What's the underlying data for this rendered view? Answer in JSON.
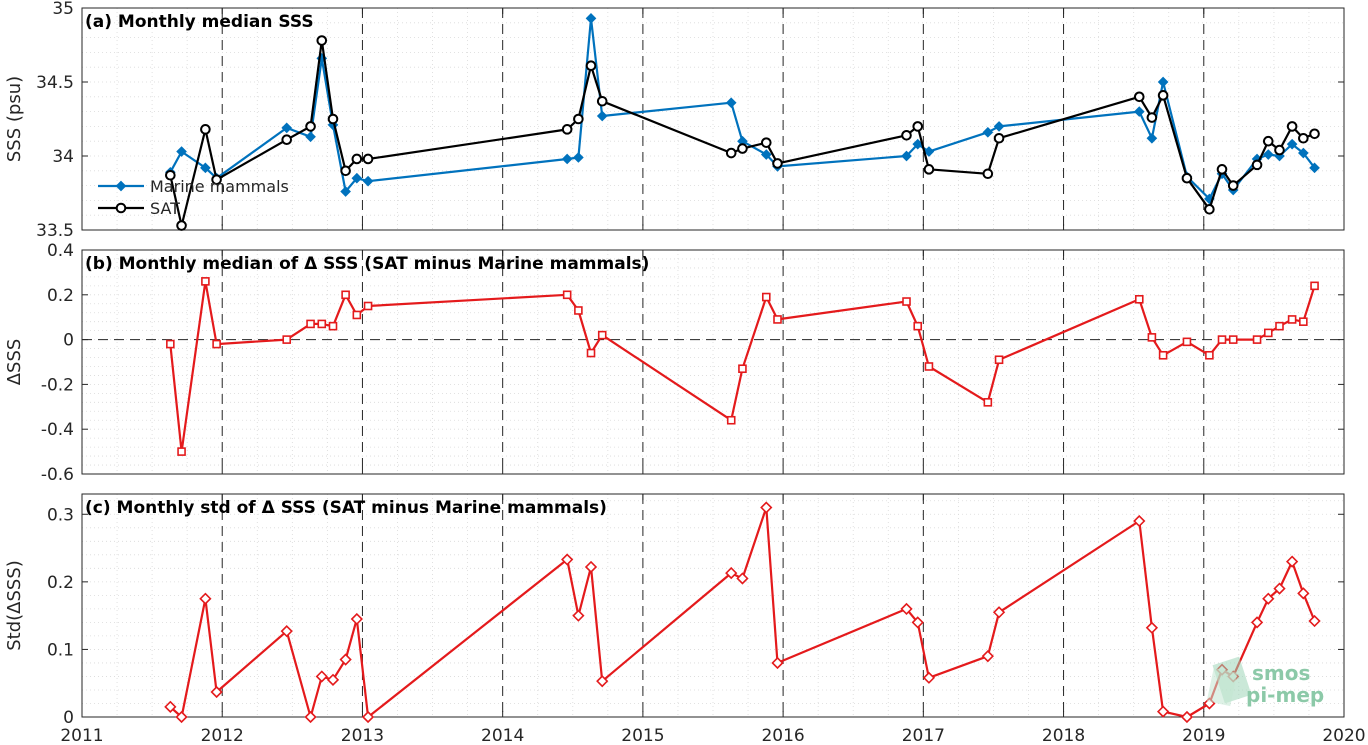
{
  "chart_data": [
    {
      "type": "line",
      "title": "(a) Monthly median SSS",
      "ylabel": "SSS (psu)",
      "xlim": [
        2011,
        2020
      ],
      "ylim": [
        33.5,
        35
      ],
      "yticks": [
        33.5,
        34,
        34.5,
        35
      ],
      "ytick_labels": [
        "33.5",
        "34",
        "34.5",
        "35"
      ],
      "grid": "minor dotted",
      "legend": "left",
      "series": [
        {
          "name": "Marine mammals",
          "color": "#0072BD",
          "marker": "diamond",
          "x": [
            2011.63,
            2011.71,
            2011.88,
            2011.96,
            2012.46,
            2012.63,
            2012.71,
            2012.79,
            2012.88,
            2012.96,
            2013.04,
            2014.46,
            2014.54,
            2014.63,
            2014.71,
            2015.63,
            2015.71,
            2015.88,
            2015.96,
            2016.88,
            2016.96,
            2017.04,
            2017.46,
            2017.54,
            2018.54,
            2018.63,
            2018.71,
            2018.88,
            2019.04,
            2019.13,
            2019.21,
            2019.38,
            2019.46,
            2019.54,
            2019.63,
            2019.71,
            2019.79
          ],
          "y": [
            33.89,
            34.03,
            33.92,
            33.85,
            34.19,
            34.13,
            34.66,
            34.21,
            33.76,
            33.85,
            33.83,
            33.98,
            33.99,
            34.93,
            34.27,
            34.36,
            34.1,
            34.01,
            33.93,
            34.0,
            34.08,
            34.03,
            34.16,
            34.2,
            34.3,
            34.12,
            34.5,
            33.86,
            33.71,
            33.88,
            33.77,
            33.98,
            34.01,
            34.0,
            34.08,
            34.02,
            33.92
          ]
        },
        {
          "name": "SAT",
          "color": "#000000",
          "marker": "circle",
          "x": [
            2011.63,
            2011.71,
            2011.88,
            2011.96,
            2012.46,
            2012.63,
            2012.71,
            2012.79,
            2012.88,
            2012.96,
            2013.04,
            2014.46,
            2014.54,
            2014.63,
            2014.71,
            2015.63,
            2015.71,
            2015.88,
            2015.96,
            2016.88,
            2016.96,
            2017.04,
            2017.46,
            2017.54,
            2018.54,
            2018.63,
            2018.71,
            2018.88,
            2019.04,
            2019.13,
            2019.21,
            2019.38,
            2019.46,
            2019.54,
            2019.63,
            2019.71,
            2019.79
          ],
          "y": [
            33.87,
            33.53,
            34.18,
            33.84,
            34.11,
            34.2,
            34.78,
            34.25,
            33.9,
            33.98,
            33.98,
            34.18,
            34.25,
            34.61,
            34.37,
            34.02,
            34.05,
            34.09,
            33.95,
            34.14,
            34.2,
            33.91,
            33.88,
            34.12,
            34.4,
            34.26,
            34.41,
            33.85,
            33.64,
            33.91,
            33.8,
            33.94,
            34.1,
            34.04,
            34.2,
            34.12,
            34.15
          ]
        }
      ]
    },
    {
      "type": "line",
      "title": "(b) Monthly median of Δ SSS (SAT minus Marine mammals)",
      "ylabel": "ΔSSS",
      "xlim": [
        2011,
        2020
      ],
      "ylim": [
        -0.6,
        0.4
      ],
      "yticks": [
        -0.6,
        -0.4,
        -0.2,
        0,
        0.2,
        0.4
      ],
      "ytick_labels": [
        "-0.6",
        "-0.4",
        "-0.2",
        "0",
        "0.2",
        "0.4"
      ],
      "zero_line": "dashed",
      "grid": "minor dotted",
      "series": [
        {
          "color": "#E41A1C",
          "marker": "square",
          "x": [
            2011.63,
            2011.71,
            2011.88,
            2011.96,
            2012.46,
            2012.63,
            2012.71,
            2012.79,
            2012.88,
            2012.96,
            2013.04,
            2014.46,
            2014.54,
            2014.63,
            2014.71,
            2015.63,
            2015.71,
            2015.88,
            2015.96,
            2016.88,
            2016.96,
            2017.04,
            2017.46,
            2017.54,
            2018.54,
            2018.63,
            2018.71,
            2018.88,
            2019.04,
            2019.13,
            2019.21,
            2019.38,
            2019.46,
            2019.54,
            2019.63,
            2019.71,
            2019.79
          ],
          "y": [
            -0.02,
            -0.5,
            0.26,
            -0.02,
            0.0,
            0.07,
            0.07,
            0.06,
            0.2,
            0.11,
            0.15,
            0.2,
            0.13,
            -0.06,
            0.02,
            -0.36,
            -0.13,
            0.19,
            0.09,
            0.17,
            0.06,
            -0.12,
            -0.28,
            -0.09,
            0.18,
            0.01,
            -0.07,
            -0.01,
            -0.07,
            0.0,
            0.0,
            0.0,
            0.03,
            0.06,
            0.09,
            0.08,
            0.24
          ]
        }
      ]
    },
    {
      "type": "line",
      "title": "(c) Monthly std of Δ SSS (SAT minus Marine mammals)",
      "ylabel": "Std(ΔSSS)",
      "xlabel": "",
      "xlim": [
        2011,
        2020
      ],
      "ylim": [
        0,
        0.33
      ],
      "yticks": [
        0,
        0.1,
        0.2,
        0.3
      ],
      "ytick_labels": [
        "0",
        "0.1",
        "0.2",
        "0.3"
      ],
      "xticks": [
        2011,
        2012,
        2013,
        2014,
        2015,
        2016,
        2017,
        2018,
        2019,
        2020
      ],
      "xtick_labels": [
        "2011",
        "2012",
        "2013",
        "2014",
        "2015",
        "2016",
        "2017",
        "2018",
        "2019",
        "2020"
      ],
      "grid": "minor dotted",
      "series": [
        {
          "color": "#E41A1C",
          "marker": "diamond",
          "x": [
            2011.63,
            2011.71,
            2011.88,
            2011.96,
            2012.46,
            2012.63,
            2012.71,
            2012.79,
            2012.88,
            2012.96,
            2013.04,
            2014.46,
            2014.54,
            2014.63,
            2014.71,
            2015.63,
            2015.71,
            2015.88,
            2015.96,
            2016.88,
            2016.96,
            2017.04,
            2017.46,
            2017.54,
            2018.54,
            2018.63,
            2018.71,
            2018.88,
            2019.04,
            2019.13,
            2019.21,
            2019.38,
            2019.46,
            2019.54,
            2019.63,
            2019.71,
            2019.79
          ],
          "y": [
            0.015,
            0.0,
            0.175,
            0.037,
            0.127,
            0.0,
            0.06,
            0.055,
            0.085,
            0.145,
            0.0,
            0.233,
            0.15,
            0.222,
            0.053,
            0.213,
            0.205,
            0.31,
            0.08,
            0.16,
            0.14,
            0.058,
            0.09,
            0.155,
            0.29,
            0.132,
            0.008,
            0.0,
            0.02,
            0.07,
            0.06,
            0.14,
            0.175,
            0.19,
            0.23,
            0.183,
            0.142
          ]
        }
      ]
    }
  ],
  "logo": {
    "line1": "smos",
    "line2": "pi-mep"
  }
}
